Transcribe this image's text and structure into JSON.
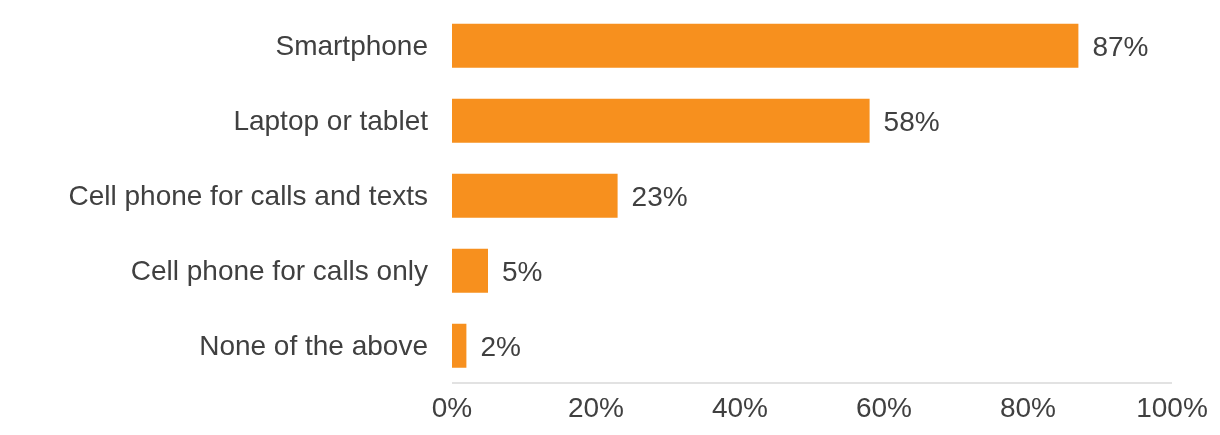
{
  "chart_data": {
    "type": "bar",
    "orientation": "horizontal",
    "categories": [
      "Smartphone",
      "Laptop or tablet",
      "Cell phone for calls and texts",
      "Cell phone for calls only",
      "None of the above"
    ],
    "values": [
      87,
      58,
      23,
      5,
      2
    ],
    "color": "#f7901e",
    "value_labels": [
      "87%",
      "58%",
      "23%",
      "5%",
      "2%"
    ],
    "xlim": [
      0,
      100
    ],
    "xticks": [
      {
        "value": 0,
        "label": "0%"
      },
      {
        "value": 20,
        "label": "20%"
      },
      {
        "value": 40,
        "label": "40%"
      },
      {
        "value": 60,
        "label": "60%"
      },
      {
        "value": 80,
        "label": "80%"
      },
      {
        "value": 100,
        "label": "100%"
      }
    ]
  }
}
